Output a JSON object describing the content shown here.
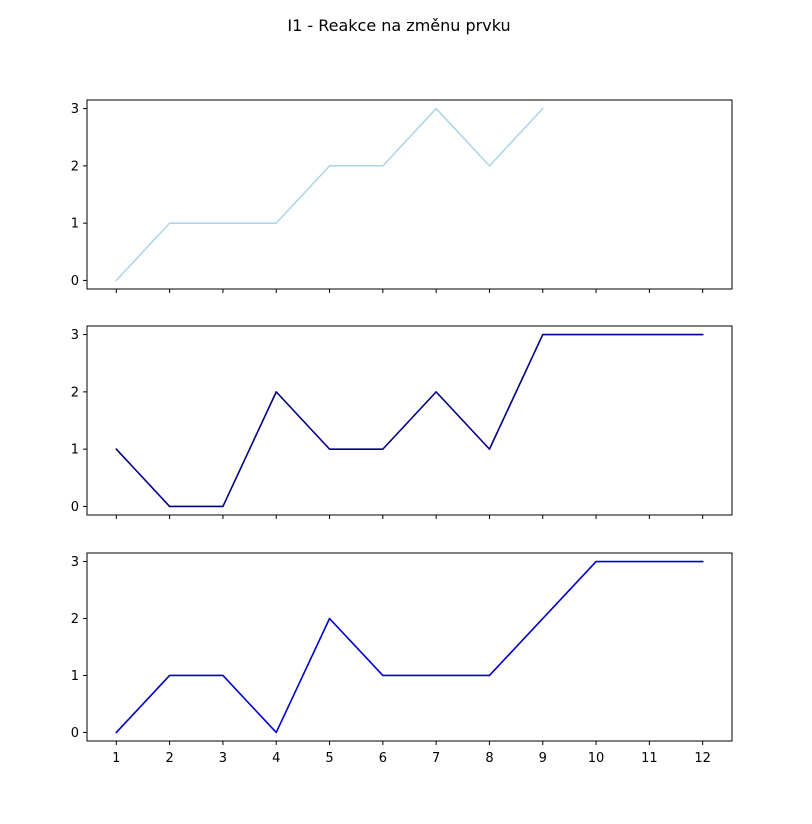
{
  "chart_data": {
    "type": "line",
    "title": "I1 - Reakce na změnu prvku",
    "x": [
      1,
      2,
      3,
      4,
      5,
      6,
      7,
      8,
      9,
      10,
      11,
      12
    ],
    "x_tick_labels": [
      "1",
      "2",
      "3",
      "4",
      "5",
      "6",
      "7",
      "8",
      "9",
      "10",
      "11",
      "12"
    ],
    "y_ticks": [
      0,
      1,
      2,
      3
    ],
    "y_tick_labels": [
      "0",
      "1",
      "2",
      "3"
    ],
    "ylim": [
      -0.15,
      3.15
    ],
    "xlim": [
      0.45,
      12.55
    ],
    "shared_x": true,
    "grid": false,
    "legend": false,
    "subplots": [
      {
        "name": "",
        "color": "#add8e6",
        "x": [
          1,
          2,
          3,
          4,
          5,
          6,
          7,
          8,
          9
        ],
        "values": [
          0,
          1,
          1,
          1,
          2,
          2,
          3,
          2,
          3
        ]
      },
      {
        "name": "",
        "color": "#000080",
        "x": [
          1,
          2,
          3,
          4,
          5,
          6,
          7,
          8,
          9,
          10,
          11,
          12
        ],
        "values": [
          1,
          0,
          0,
          2,
          1,
          1,
          2,
          1,
          3,
          3,
          3,
          3
        ]
      },
      {
        "name": "",
        "color": "#0000cd",
        "x": [
          1,
          2,
          3,
          4,
          5,
          6,
          7,
          8,
          9,
          10,
          11,
          12
        ],
        "values": [
          0,
          1,
          1,
          0,
          2,
          1,
          1,
          1,
          2,
          3,
          3,
          3
        ]
      }
    ]
  }
}
